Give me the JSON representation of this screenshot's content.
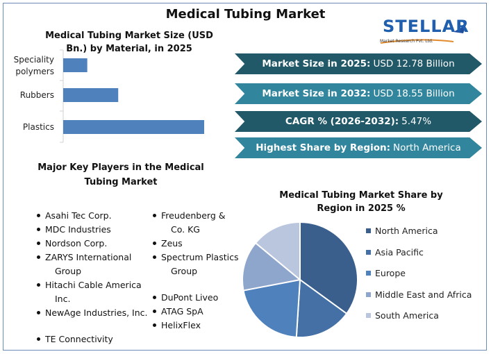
{
  "title": "Medical Tubing Market",
  "logo": {
    "name": "STELLAR",
    "tagline": "Market Research Pvt. Ltd."
  },
  "banners": [
    {
      "label": "Market Size in 2025:",
      "value": "USD 12.78 Billion",
      "color": "#215968"
    },
    {
      "label": "Market Size in 2032:",
      "value": "USD 18.55 Billion",
      "color": "#31859c"
    },
    {
      "label": "CAGR % (2026-2032):",
      "value": "5.47%",
      "color": "#215968"
    },
    {
      "label": "Highest Share by Region:",
      "value": "North America",
      "color": "#31859c"
    }
  ],
  "players": {
    "title": "Major Key Players in the Medical Tubing Market",
    "left": [
      "Asahi Tec Corp.",
      "MDC Industries",
      "Nordson Corp.",
      "ZARYS International Group",
      "Hitachi Cable America Inc.",
      "NewAge Industries, Inc.",
      "TE Connectivity"
    ],
    "right": [
      "Freudenberg & Co. KG",
      "Zeus",
      "Spectrum Plastics Group",
      "DuPont Liveo",
      "ATAG SpA",
      "HelixFlex"
    ]
  },
  "chart_data": [
    {
      "type": "bar",
      "orientation": "horizontal",
      "title": "Medical Tubing Market Size (USD Bn.) by Material, in 2025",
      "categories": [
        "Speciality polymers",
        "Rubbers",
        "Plastics"
      ],
      "values": [
        1.4,
        3.2,
        8.2
      ],
      "color": "#4f81bd",
      "grid": false
    },
    {
      "type": "pie",
      "title": "Medical Tubing Market Share by Region in 2025 %",
      "categories": [
        "North America",
        "Asia Pacific",
        "Europe",
        "Middle East and Africa",
        "South America"
      ],
      "values": [
        35,
        16,
        21,
        14,
        14
      ],
      "colors": [
        "#3a5f8c",
        "#4470a6",
        "#4f81bd",
        "#8fa6cc",
        "#bac6de"
      ],
      "legend": "right"
    }
  ]
}
